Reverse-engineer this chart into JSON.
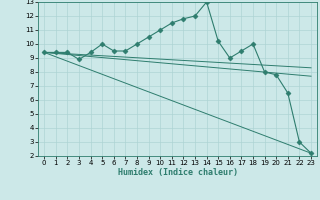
{
  "xlabel": "Humidex (Indice chaleur)",
  "ylabel": "",
  "background_color": "#cce8e8",
  "grid_color": "#aed4d4",
  "line_color": "#2e7d6e",
  "xlim": [
    -0.5,
    23.5
  ],
  "ylim": [
    2,
    13
  ],
  "xticks": [
    0,
    1,
    2,
    3,
    4,
    5,
    6,
    7,
    8,
    9,
    10,
    11,
    12,
    13,
    14,
    15,
    16,
    17,
    18,
    19,
    20,
    21,
    22,
    23
  ],
  "yticks": [
    2,
    3,
    4,
    5,
    6,
    7,
    8,
    9,
    10,
    11,
    12,
    13
  ],
  "line1_x": [
    0,
    1,
    2,
    3,
    4,
    5,
    6,
    7,
    8,
    9,
    10,
    11,
    12,
    13,
    14,
    15,
    16,
    17,
    18,
    19,
    20,
    21,
    22,
    23
  ],
  "line1_y": [
    9.4,
    9.4,
    9.4,
    8.9,
    9.4,
    10.0,
    9.5,
    9.5,
    10.0,
    10.5,
    11.0,
    11.5,
    11.8,
    12.0,
    13.0,
    10.2,
    9.0,
    9.5,
    10.0,
    8.0,
    7.8,
    6.5,
    3.0,
    2.2
  ],
  "line2_x": [
    0,
    23
  ],
  "line2_y": [
    9.4,
    8.3
  ],
  "line3_x": [
    0,
    23
  ],
  "line3_y": [
    9.4,
    7.7
  ],
  "line4_x": [
    0,
    23
  ],
  "line4_y": [
    9.4,
    2.2
  ],
  "marker": "D",
  "markersize": 2.5,
  "tick_fontsize": 5,
  "xlabel_fontsize": 6
}
